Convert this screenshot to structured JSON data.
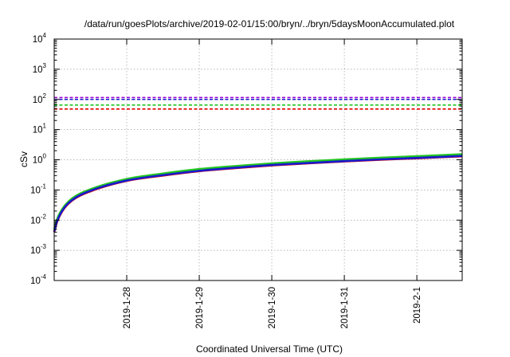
{
  "chart_data": {
    "type": "line",
    "title": "/data/run/goesPlots/archive/2019-02-01/15:00/bryn/../bryn/5daysMoonAccumulated.plot",
    "xlabel": "Coordinated Universal Time (UTC)",
    "ylabel": "cSv",
    "y_scale": "log",
    "ylim": [
      0.0001,
      10000
    ],
    "y_tick_base": "10",
    "y_tick_exponents": [
      "-4",
      "-3",
      "-2",
      "-1",
      "0",
      "1",
      "2",
      "3",
      "4"
    ],
    "xlim": [
      "2019-01-27 00:00",
      "2019-02-01 15:00"
    ],
    "x_ticks": [
      "2019-1-28",
      "2019-1-29",
      "2019-1-30",
      "2019-1-31",
      "2019-2-1"
    ],
    "grid": true,
    "legend": "none",
    "threshold_lines": [
      {
        "value": 115,
        "color": "#9400d3",
        "style": "dashed"
      },
      {
        "value": 100,
        "color": "#1a1acd",
        "style": "dashed"
      },
      {
        "value": 65,
        "color": "#22c522",
        "style": "dashed"
      },
      {
        "value": 48,
        "color": "#e00000",
        "style": "dashed"
      }
    ],
    "series": [
      {
        "color": "#e00000",
        "x": [
          "2019-01-27 00:00",
          "2019-01-27 01:00",
          "2019-01-27 03:00",
          "2019-01-27 06:00",
          "2019-01-27 12:00",
          "2019-01-28 00:00",
          "2019-01-28 12:00",
          "2019-01-29 00:00",
          "2019-01-29 12:00",
          "2019-01-30 00:00",
          "2019-01-30 12:00",
          "2019-01-31 00:00",
          "2019-01-31 12:00",
          "2019-02-01 00:00",
          "2019-02-01 15:00"
        ],
        "y": [
          0.004,
          0.009,
          0.022,
          0.045,
          0.09,
          0.2,
          0.3,
          0.42,
          0.53,
          0.65,
          0.76,
          0.88,
          1.0,
          1.12,
          1.3
        ]
      },
      {
        "color": "#22c522",
        "x": [
          "2019-01-27 00:00",
          "2019-01-27 01:00",
          "2019-01-27 03:00",
          "2019-01-27 06:00",
          "2019-01-27 12:00",
          "2019-01-28 00:00",
          "2019-01-28 12:00",
          "2019-01-29 00:00",
          "2019-01-29 12:00",
          "2019-01-30 00:00",
          "2019-01-30 12:00",
          "2019-01-31 00:00",
          "2019-01-31 12:00",
          "2019-02-01 00:00",
          "2019-02-01 15:00"
        ],
        "y": [
          0.005,
          0.011,
          0.026,
          0.053,
          0.105,
          0.23,
          0.35,
          0.49,
          0.62,
          0.76,
          0.89,
          1.03,
          1.17,
          1.31,
          1.52
        ]
      },
      {
        "color": "#1a1acd",
        "x": [
          "2019-01-27 00:00",
          "2019-01-27 01:00",
          "2019-01-27 03:00",
          "2019-01-27 06:00",
          "2019-01-27 12:00",
          "2019-01-28 00:00",
          "2019-01-28 12:00",
          "2019-01-29 00:00",
          "2019-01-29 12:00",
          "2019-01-30 00:00",
          "2019-01-30 12:00",
          "2019-01-31 00:00",
          "2019-01-31 12:00",
          "2019-02-01 00:00",
          "2019-02-01 15:00"
        ],
        "y": [
          0.0042,
          0.0094,
          0.023,
          0.047,
          0.094,
          0.205,
          0.31,
          0.43,
          0.545,
          0.67,
          0.78,
          0.905,
          1.03,
          1.15,
          1.34
        ]
      }
    ]
  }
}
